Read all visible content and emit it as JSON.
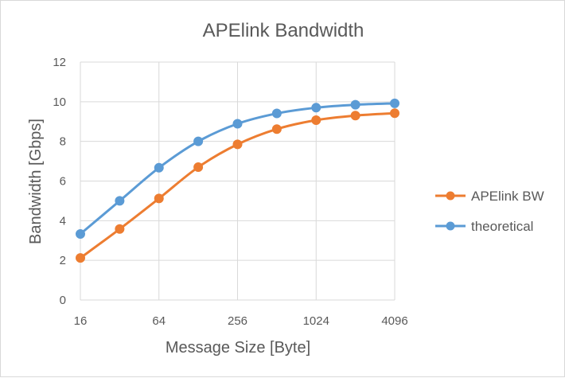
{
  "chart_data": {
    "type": "line",
    "title": "APElink Bandwidth",
    "xlabel": "Message Size [Byte]",
    "ylabel": "Bandwidth [Gbps]",
    "x_scale": "log2",
    "x": [
      16,
      32,
      64,
      128,
      256,
      512,
      1024,
      2048,
      4096
    ],
    "x_tick_labels": [
      "16",
      "64",
      "256",
      "1024",
      "4096"
    ],
    "x_tick_values": [
      16,
      64,
      256,
      1024,
      4096
    ],
    "ylim": [
      0,
      12
    ],
    "y_ticks": [
      0,
      2,
      4,
      6,
      8,
      10,
      12
    ],
    "grid": true,
    "legend_position": "right",
    "series": [
      {
        "name": "APElink BW",
        "color": "#ed7d31",
        "values": [
          2.12,
          3.58,
          5.12,
          6.7,
          7.85,
          8.62,
          9.07,
          9.3,
          9.42
        ]
      },
      {
        "name": "theoretical",
        "color": "#5b9bd5",
        "values": [
          3.33,
          5.0,
          6.67,
          8.0,
          8.89,
          9.41,
          9.7,
          9.85,
          9.92
        ]
      }
    ]
  }
}
